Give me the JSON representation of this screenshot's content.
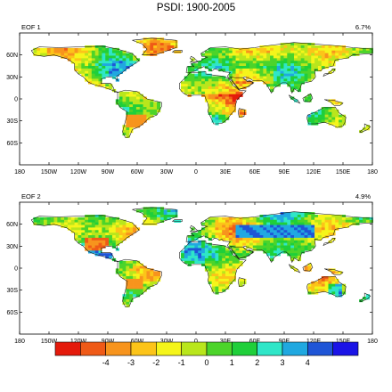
{
  "title": "PSDI: 1900-2005",
  "panels": [
    {
      "label": "EOF 1",
      "pct": "6.7%"
    },
    {
      "label": "EOF 2",
      "pct": "4.9%"
    }
  ],
  "lon_ticks": [
    "180",
    "150W",
    "120W",
    "90W",
    "60W",
    "30W",
    "0",
    "30E",
    "60E",
    "90E",
    "120E",
    "150E",
    "180"
  ],
  "lat_ticks": [
    "60N",
    "30N",
    "0",
    "30S",
    "60S"
  ],
  "colorbar": {
    "colors": [
      "#e41a0b",
      "#ef5a17",
      "#f7941d",
      "#fcc419",
      "#f5f51a",
      "#b9e61c",
      "#4cd42a",
      "#1fcf3a",
      "#2fe6c8",
      "#20a8e0",
      "#1f55d6",
      "#1b14e6"
    ],
    "labels": [
      "-4",
      "-3",
      "-2",
      "-1",
      "0",
      "1",
      "2",
      "3",
      "4"
    ]
  }
}
